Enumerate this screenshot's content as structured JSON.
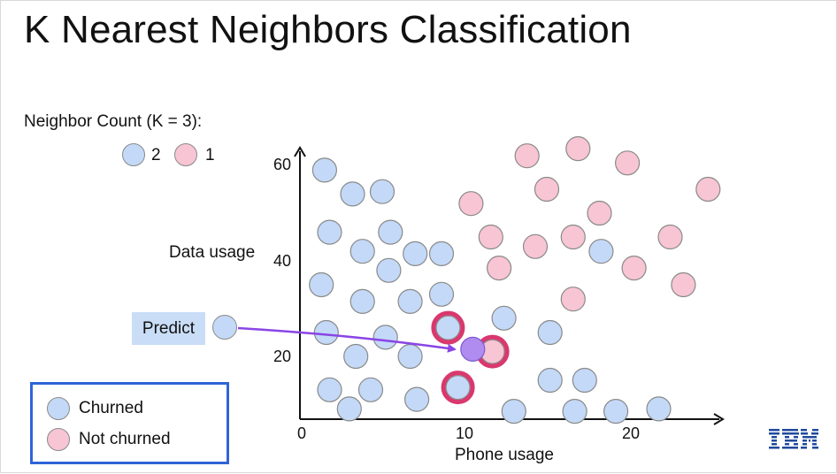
{
  "title": "K Nearest Neighbors Classification",
  "neighbor_count": {
    "label": "Neighbor Count (K = 3):",
    "blue_count": "2",
    "pink_count": "1"
  },
  "predict_label": "Predict",
  "legend": {
    "churned": "Churned",
    "not_churned": "Not churned"
  },
  "logo_text": "IBM",
  "colors": {
    "churned": "#c3d9f7",
    "not_churned": "#f7c5d3",
    "query": "#b08cf0",
    "arrow": "#8a45e6",
    "ring": "#d9386e",
    "legend_border": "#2f64d8"
  },
  "chart_data": {
    "type": "scatter",
    "xlabel": "Phone usage",
    "ylabel": "Data usage",
    "xticks": [
      "0",
      "10",
      "20"
    ],
    "yticks": [
      "20",
      "40",
      "60"
    ],
    "xlim": [
      0,
      25
    ],
    "ylim": [
      5,
      62
    ],
    "k": 3,
    "series": [
      {
        "name": "Churned",
        "points": [
          [
            1.5,
            59
          ],
          [
            3.2,
            54
          ],
          [
            5.0,
            54.5
          ],
          [
            1.8,
            46
          ],
          [
            5.5,
            46
          ],
          [
            3.8,
            42
          ],
          [
            7.0,
            41.5
          ],
          [
            8.6,
            41.5
          ],
          [
            5.4,
            38
          ],
          [
            1.3,
            35
          ],
          [
            3.8,
            31.5
          ],
          [
            6.7,
            31.5
          ],
          [
            8.6,
            33
          ],
          [
            1.6,
            25
          ],
          [
            5.2,
            24
          ],
          [
            3.4,
            20
          ],
          [
            6.7,
            20
          ],
          [
            9.0,
            26
          ],
          [
            12.4,
            28
          ],
          [
            15.2,
            25
          ],
          [
            18.3,
            42
          ],
          [
            1.8,
            13
          ],
          [
            4.3,
            13
          ],
          [
            7.1,
            11
          ],
          [
            9.6,
            13.5
          ],
          [
            3.0,
            9
          ],
          [
            13.0,
            8.5
          ],
          [
            15.2,
            15
          ],
          [
            17.3,
            15
          ],
          [
            16.7,
            8.5
          ],
          [
            19.2,
            8.5
          ],
          [
            21.8,
            9
          ]
        ]
      },
      {
        "name": "Not churned",
        "points": [
          [
            13.8,
            62
          ],
          [
            16.9,
            63.5
          ],
          [
            19.9,
            60.5
          ],
          [
            15.0,
            55
          ],
          [
            10.4,
            52
          ],
          [
            18.2,
            50
          ],
          [
            24.8,
            55
          ],
          [
            11.6,
            45
          ],
          [
            14.3,
            43
          ],
          [
            16.6,
            45
          ],
          [
            22.5,
            45
          ],
          [
            12.1,
            38.5
          ],
          [
            20.3,
            38.5
          ],
          [
            16.6,
            32
          ],
          [
            23.3,
            35
          ],
          [
            11.7,
            21
          ]
        ]
      }
    ],
    "query_point": [
      10.5,
      21.5
    ],
    "nearest_neighbors": [
      [
        9.0,
        26
      ],
      [
        11.7,
        21
      ],
      [
        9.6,
        13.5
      ]
    ]
  }
}
